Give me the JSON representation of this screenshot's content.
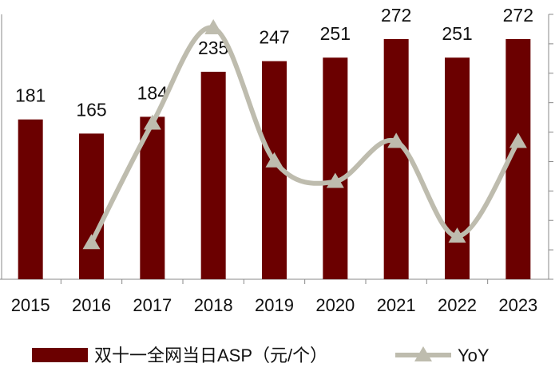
{
  "chart_data": {
    "type": "bar+line",
    "categories": [
      "2015",
      "2016",
      "2017",
      "2018",
      "2019",
      "2020",
      "2021",
      "2022",
      "2023"
    ],
    "series": [
      {
        "name": "双十一全网当日ASP（元/个）",
        "type": "bar",
        "axis": "left",
        "values": [
          181,
          165,
          184,
          235,
          247,
          251,
          272,
          251,
          272
        ],
        "color": "#6b0000"
      },
      {
        "name": "YoY",
        "type": "line",
        "axis": "right",
        "marker": "triangle",
        "smooth": true,
        "values": [
          null,
          -8.8,
          11.5,
          27.7,
          5.1,
          1.6,
          8.4,
          -7.7,
          8.4
        ],
        "color": "#bebcae"
      }
    ],
    "ylim_left": [
      0,
      300
    ],
    "ylim_right": [
      -15,
      30
    ],
    "right_tick_step": 5,
    "tick_labels_y": false,
    "grid": false,
    "legend_position": "bottom"
  }
}
